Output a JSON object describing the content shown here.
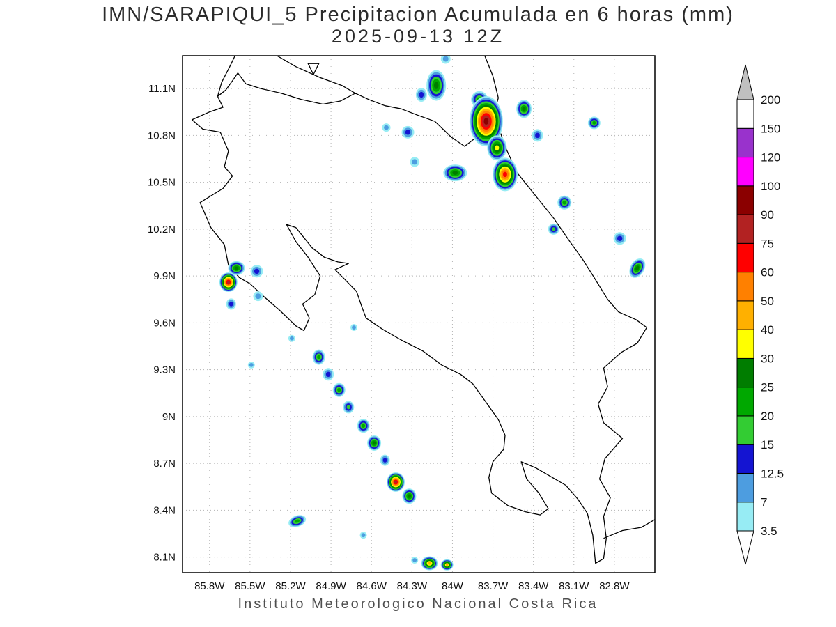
{
  "title": {
    "line1": "IMN/SARAPIQUI_5 Precipitacion Acumulada en 6 horas (mm)",
    "line2": "2025-09-13 12Z"
  },
  "footer": "Instituto Meteorologico Nacional Costa Rica",
  "chart_data": {
    "type": "heatmap",
    "title": "IMN/SARAPIQUI_5 Precipitacion Acumulada en 6 horas (mm)",
    "subtitle": "2025-09-13 12Z",
    "units": "mm",
    "region": "Costa Rica",
    "grid": true,
    "lat_ticks": [
      "11.1N",
      "10.8N",
      "10.5N",
      "10.2N",
      "9.9N",
      "9.6N",
      "9.3N",
      "9N",
      "8.7N",
      "8.4N",
      "8.1N"
    ],
    "lon_ticks": [
      "85.8W",
      "85.5W",
      "85.2W",
      "84.9W",
      "84.6W",
      "84.3W",
      "84W",
      "83.7W",
      "83.4W",
      "83.1W",
      "82.8W"
    ],
    "lon_range_w": [
      86.0,
      82.5
    ],
    "lat_range_n": [
      8.0,
      11.31
    ],
    "colorbar": {
      "orientation": "vertical-right",
      "levels": [
        3.5,
        7,
        12.5,
        15,
        20,
        25,
        30,
        40,
        50,
        60,
        75,
        90,
        100,
        120,
        150,
        200
      ],
      "labels": [
        "3.5",
        "7",
        "12.5",
        "15",
        "20",
        "25",
        "30",
        "40",
        "50",
        "60",
        "75",
        "90",
        "100",
        "120",
        "150",
        "200"
      ],
      "band_colors": [
        "#97ecf4",
        "#4d9de0",
        "#1414d2",
        "#33cc33",
        "#00a800",
        "#007d00",
        "#ffff00",
        "#ffb000",
        "#ff8000",
        "#ff0000",
        "#b22222",
        "#8b0000",
        "#ff00ff",
        "#9932cc",
        "#ffffff",
        "#c0c0c0"
      ],
      "below_min_color": "#ffffff"
    },
    "cells": [
      {
        "lon": 84.12,
        "lat": 11.12,
        "max": 25,
        "r": 14,
        "ry": 22
      },
      {
        "lon": 84.23,
        "lat": 11.06,
        "max": 12.5,
        "r": 8,
        "ry": 10
      },
      {
        "lon": 84.05,
        "lat": 11.29,
        "max": 7,
        "r": 7,
        "ry": 7
      },
      {
        "lon": 83.8,
        "lat": 11.03,
        "max": 20,
        "r": 12,
        "ry": 12
      },
      {
        "lon": 83.75,
        "lat": 10.89,
        "max": 90,
        "r": 24,
        "ry": 36
      },
      {
        "lon": 83.67,
        "lat": 10.72,
        "max": 30,
        "r": 14,
        "ry": 18
      },
      {
        "lon": 83.61,
        "lat": 10.55,
        "max": 60,
        "r": 18,
        "ry": 24
      },
      {
        "lon": 83.98,
        "lat": 10.56,
        "max": 25,
        "r": 17,
        "ry": 12
      },
      {
        "lon": 84.33,
        "lat": 10.82,
        "max": 12.5,
        "r": 9,
        "ry": 9
      },
      {
        "lon": 84.49,
        "lat": 10.85,
        "max": 7,
        "r": 6,
        "ry": 6
      },
      {
        "lon": 84.28,
        "lat": 10.63,
        "max": 7,
        "r": 7,
        "ry": 7
      },
      {
        "lon": 83.47,
        "lat": 10.97,
        "max": 25,
        "r": 11,
        "ry": 13
      },
      {
        "lon": 83.37,
        "lat": 10.8,
        "max": 12.5,
        "r": 8,
        "ry": 9
      },
      {
        "lon": 82.95,
        "lat": 10.88,
        "max": 20,
        "r": 9,
        "ry": 9
      },
      {
        "lon": 83.17,
        "lat": 10.37,
        "max": 20,
        "r": 10,
        "ry": 10
      },
      {
        "lon": 83.25,
        "lat": 10.2,
        "max": 15,
        "r": 8,
        "ry": 8
      },
      {
        "lon": 82.76,
        "lat": 10.14,
        "max": 12.5,
        "r": 9,
        "ry": 9
      },
      {
        "lon": 82.63,
        "lat": 9.95,
        "max": 25,
        "r": 10,
        "ry": 15,
        "rot": 30
      },
      {
        "lon": 85.6,
        "lat": 9.95,
        "max": 25,
        "r": 12,
        "ry": 10
      },
      {
        "lon": 85.66,
        "lat": 9.86,
        "max": 75,
        "r": 13,
        "ry": 14
      },
      {
        "lon": 85.45,
        "lat": 9.93,
        "max": 12.5,
        "r": 9,
        "ry": 9
      },
      {
        "lon": 85.64,
        "lat": 9.72,
        "max": 12.5,
        "r": 7,
        "ry": 8
      },
      {
        "lon": 85.44,
        "lat": 9.77,
        "max": 7,
        "r": 7,
        "ry": 7
      },
      {
        "lon": 85.49,
        "lat": 9.33,
        "max": 7,
        "r": 5,
        "ry": 5
      },
      {
        "lon": 85.19,
        "lat": 9.5,
        "max": 7,
        "r": 5,
        "ry": 5
      },
      {
        "lon": 84.73,
        "lat": 9.57,
        "max": 7,
        "r": 5,
        "ry": 5
      },
      {
        "lon": 84.99,
        "lat": 9.38,
        "max": 20,
        "r": 9,
        "ry": 11
      },
      {
        "lon": 84.92,
        "lat": 9.27,
        "max": 12.5,
        "r": 8,
        "ry": 9
      },
      {
        "lon": 84.84,
        "lat": 9.17,
        "max": 20,
        "r": 9,
        "ry": 10
      },
      {
        "lon": 84.77,
        "lat": 9.06,
        "max": 15,
        "r": 8,
        "ry": 9
      },
      {
        "lon": 84.66,
        "lat": 8.94,
        "max": 20,
        "r": 9,
        "ry": 10
      },
      {
        "lon": 84.58,
        "lat": 8.83,
        "max": 25,
        "r": 10,
        "ry": 11
      },
      {
        "lon": 84.5,
        "lat": 8.72,
        "max": 12.5,
        "r": 7,
        "ry": 8
      },
      {
        "lon": 84.42,
        "lat": 8.58,
        "max": 75,
        "r": 13,
        "ry": 14
      },
      {
        "lon": 84.32,
        "lat": 8.49,
        "max": 25,
        "r": 10,
        "ry": 11
      },
      {
        "lon": 85.15,
        "lat": 8.33,
        "max": 20,
        "r": 13,
        "ry": 8,
        "rot": -20
      },
      {
        "lon": 84.66,
        "lat": 8.24,
        "max": 7,
        "r": 5,
        "ry": 5
      },
      {
        "lon": 84.28,
        "lat": 8.08,
        "max": 7,
        "r": 5,
        "ry": 5
      },
      {
        "lon": 84.17,
        "lat": 8.06,
        "max": 40,
        "r": 12,
        "ry": 10
      },
      {
        "lon": 84.04,
        "lat": 8.05,
        "max": 40,
        "r": 9,
        "ry": 8
      }
    ]
  },
  "map_paths": [
    {
      "name": "costa-rica-boundary",
      "points": [
        [
          85.74,
          11.05
        ],
        [
          85.7,
          10.98
        ],
        [
          85.8,
          10.95
        ],
        [
          85.93,
          10.9
        ],
        [
          85.85,
          10.84
        ],
        [
          85.72,
          10.82
        ],
        [
          85.66,
          10.7
        ],
        [
          85.69,
          10.6
        ],
        [
          85.63,
          10.54
        ],
        [
          85.7,
          10.46
        ],
        [
          85.87,
          10.37
        ],
        [
          85.79,
          10.21
        ],
        [
          85.69,
          10.1
        ],
        [
          85.66,
          9.97
        ],
        [
          85.58,
          9.89
        ],
        [
          85.5,
          9.85
        ],
        [
          85.4,
          9.77
        ],
        [
          85.28,
          9.68
        ],
        [
          85.16,
          9.58
        ],
        [
          85.1,
          9.55
        ],
        [
          85.06,
          9.63
        ],
        [
          85.11,
          9.72
        ],
        [
          85.02,
          9.78
        ],
        [
          84.98,
          9.9
        ],
        [
          85.07,
          10.02
        ],
        [
          85.16,
          10.12
        ],
        [
          85.23,
          10.23
        ],
        [
          85.16,
          10.21
        ],
        [
          85.04,
          10.08
        ],
        [
          84.95,
          10.02
        ],
        [
          84.85,
          9.99
        ],
        [
          84.77,
          9.98
        ],
        [
          84.87,
          9.94
        ],
        [
          84.8,
          9.88
        ],
        [
          84.71,
          9.8
        ],
        [
          84.67,
          9.7
        ],
        [
          84.64,
          9.63
        ],
        [
          84.52,
          9.56
        ],
        [
          84.38,
          9.49
        ],
        [
          84.22,
          9.42
        ],
        [
          84.08,
          9.33
        ],
        [
          83.94,
          9.27
        ],
        [
          83.85,
          9.21
        ],
        [
          83.75,
          9.09
        ],
        [
          83.66,
          8.98
        ],
        [
          83.61,
          8.88
        ],
        [
          83.62,
          8.79
        ],
        [
          83.7,
          8.71
        ],
        [
          83.73,
          8.61
        ],
        [
          83.71,
          8.51
        ],
        [
          83.59,
          8.43
        ],
        [
          83.46,
          8.39
        ],
        [
          83.35,
          8.37
        ],
        [
          83.29,
          8.41
        ],
        [
          83.36,
          8.51
        ],
        [
          83.45,
          8.6
        ],
        [
          83.49,
          8.71
        ],
        [
          83.38,
          8.67
        ],
        [
          83.26,
          8.61
        ],
        [
          83.16,
          8.56
        ],
        [
          83.07,
          8.47
        ],
        [
          83.0,
          8.38
        ],
        [
          82.96,
          8.24
        ],
        [
          82.94,
          8.06
        ],
        [
          82.88,
          8.09
        ],
        [
          82.86,
          8.22
        ],
        [
          82.88,
          8.36
        ],
        [
          82.83,
          8.48
        ],
        [
          82.91,
          8.6
        ],
        [
          82.87,
          8.73
        ],
        [
          82.74,
          8.86
        ],
        [
          82.88,
          8.96
        ],
        [
          82.92,
          9.08
        ],
        [
          82.85,
          9.19
        ],
        [
          82.88,
          9.31
        ],
        [
          82.75,
          9.41
        ],
        [
          82.63,
          9.47
        ],
        [
          82.56,
          9.57
        ],
        [
          82.64,
          9.62
        ],
        [
          82.77,
          9.67
        ],
        [
          82.85,
          9.75
        ],
        [
          82.95,
          9.89
        ],
        [
          83.03,
          10.0
        ],
        [
          83.13,
          10.12
        ],
        [
          83.25,
          10.27
        ],
        [
          83.39,
          10.42
        ],
        [
          83.52,
          10.56
        ],
        [
          83.6,
          10.71
        ],
        [
          83.65,
          10.83
        ],
        [
          83.7,
          10.92
        ],
        [
          83.79,
          10.81
        ],
        [
          83.91,
          10.73
        ],
        [
          84.01,
          10.79
        ],
        [
          84.13,
          10.89
        ],
        [
          84.26,
          10.93
        ],
        [
          84.38,
          10.97
        ],
        [
          84.5,
          10.99
        ],
        [
          84.62,
          11.03
        ],
        [
          84.72,
          11.07
        ],
        [
          84.83,
          11.02
        ],
        [
          84.96,
          11.0
        ],
        [
          85.12,
          11.03
        ],
        [
          85.27,
          11.07
        ],
        [
          85.42,
          11.1
        ],
        [
          85.53,
          11.13
        ],
        [
          85.59,
          11.2
        ],
        [
          85.63,
          11.15
        ],
        [
          85.68,
          11.09
        ],
        [
          85.74,
          11.05
        ]
      ]
    },
    {
      "name": "nicaragua-pacific-coast",
      "points": [
        [
          85.6,
          11.33
        ],
        [
          85.65,
          11.24
        ],
        [
          85.71,
          11.14
        ],
        [
          85.74,
          11.05
        ]
      ]
    },
    {
      "name": "lake-nicaragua-shore",
      "points": [
        [
          85.34,
          11.33
        ],
        [
          85.16,
          11.24
        ],
        [
          84.98,
          11.17
        ],
        [
          84.82,
          11.12
        ],
        [
          84.72,
          11.07
        ]
      ]
    },
    {
      "name": "nicaragua-caribbean-coast",
      "points": [
        [
          83.77,
          11.33
        ],
        [
          83.7,
          11.18
        ],
        [
          83.66,
          11.04
        ],
        [
          83.7,
          10.92
        ]
      ]
    },
    {
      "name": "panama-pacific-coast",
      "points": [
        [
          82.88,
          8.22
        ],
        [
          82.74,
          8.27
        ],
        [
          82.6,
          8.29
        ],
        [
          82.5,
          8.34
        ]
      ]
    },
    {
      "name": "lake-island",
      "closed": true,
      "fill": "#ffffff",
      "points": [
        [
          85.07,
          11.26
        ],
        [
          84.99,
          11.26
        ],
        [
          85.03,
          11.19
        ]
      ]
    }
  ]
}
